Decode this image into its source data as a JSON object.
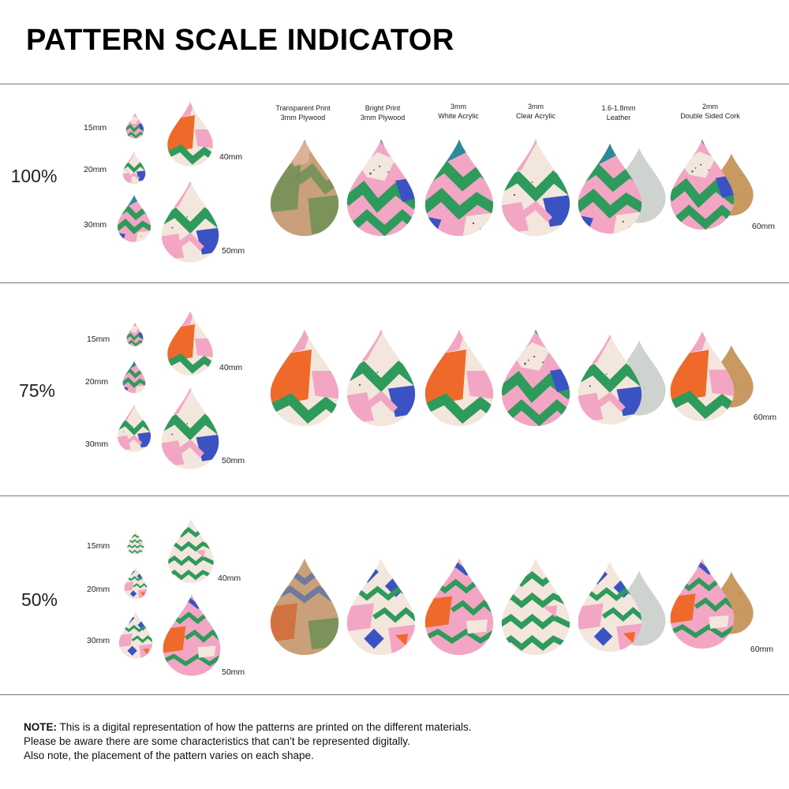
{
  "title": "PATTERN SCALE INDICATOR",
  "materials": [
    {
      "line1": "Transparent Print",
      "line2": "3mm Plywood"
    },
    {
      "line1": "Bright Print",
      "line2": "3mm Plywood"
    },
    {
      "line1": "3mm",
      "line2": "White Acrylic"
    },
    {
      "line1": "3mm",
      "line2": "Clear Acrylic"
    },
    {
      "line1": "1.6-1.8mm",
      "line2": "Leather"
    },
    {
      "line1": "2mm",
      "line2": "Double Sided Cork"
    }
  ],
  "sizes": [
    "15mm",
    "20mm",
    "30mm",
    "40mm",
    "50mm"
  ],
  "large_size": "60mm",
  "rows": [
    {
      "scale": "100%"
    },
    {
      "scale": "75%"
    },
    {
      "scale": "50%"
    }
  ],
  "note": {
    "bold": "NOTE:",
    "line1": " This is a digital representation of how the patterns are printed on the different materials.",
    "line2": "Please be aware there are some characteristics that can’t be represented digitally.",
    "line3": "Also note, the placement of the pattern varies on each shape."
  },
  "colors": {
    "pink": "#f2a6c4",
    "green": "#2e9a5c",
    "orange": "#ef6a2a",
    "blue": "#3b53c2",
    "teal": "#2c8a9a",
    "cream": "#f3e6dc",
    "leather": "#cfd3cf",
    "cork": "#c89a62",
    "wood": "#c9a07a"
  }
}
